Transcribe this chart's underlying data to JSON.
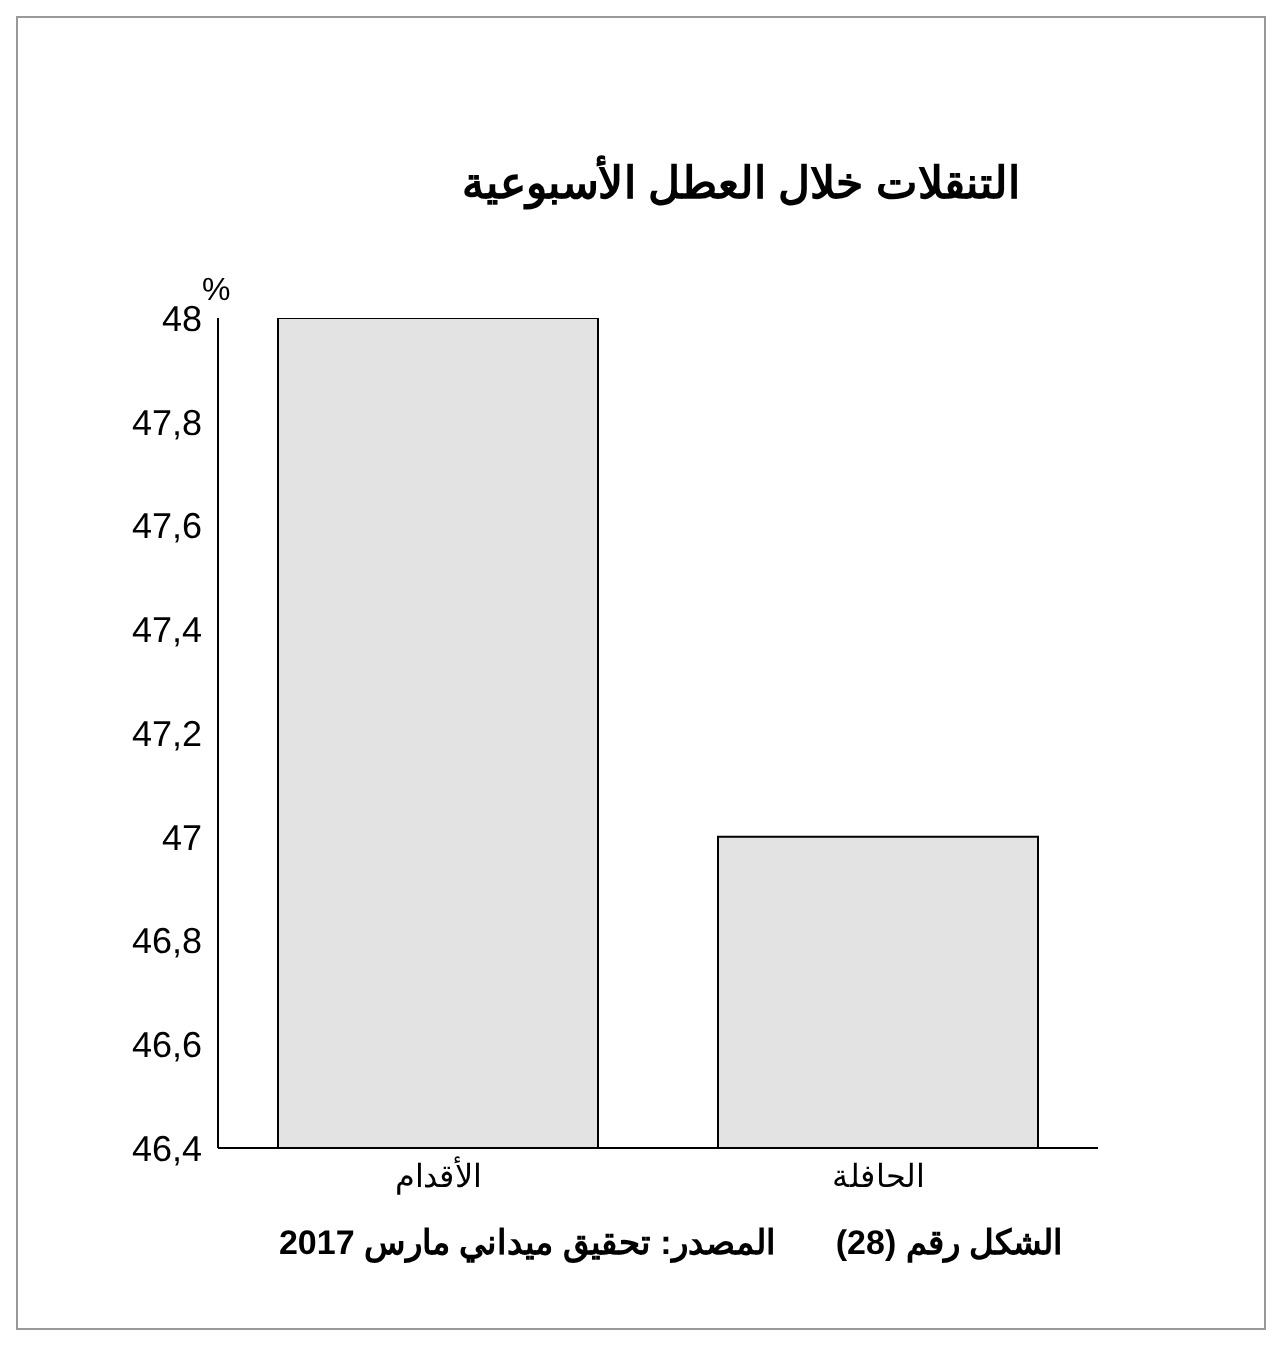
{
  "chart_data": {
    "type": "bar",
    "title": "التنقلات خلال العطل الأسبوعية",
    "ylabel": "%",
    "categories": [
      "الأقدام",
      "الحافلة"
    ],
    "values": [
      48,
      47
    ],
    "color": "#e3e3e3",
    "ylim": [
      46.4,
      48
    ],
    "yticks": [
      {
        "value": 46.4,
        "label": "46,4"
      },
      {
        "value": 46.6,
        "label": "46,6"
      },
      {
        "value": 46.8,
        "label": "46,8"
      },
      {
        "value": 47,
        "label": "47"
      },
      {
        "value": 47.2,
        "label": "47,2"
      },
      {
        "value": 47.4,
        "label": "47,4"
      },
      {
        "value": 47.6,
        "label": "47,6"
      },
      {
        "value": 47.8,
        "label": "47,8"
      },
      {
        "value": 48,
        "label": "48"
      }
    ],
    "grid": false,
    "annotations": [
      "الشكل رقم (28)",
      "المصدر: تحقيق ميداني مارس 2017"
    ]
  }
}
